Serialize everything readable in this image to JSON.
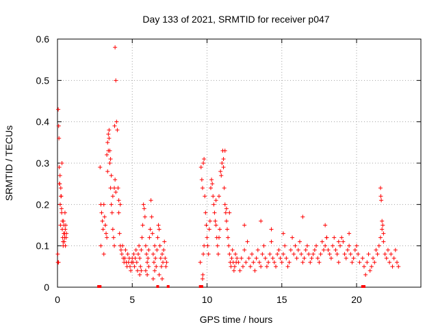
{
  "chart_data": {
    "type": "scatter",
    "title": "Day 133 of 2021, SRMTID for receiver p047",
    "xlabel": "GPS time / hours",
    "ylabel": "SRMTID / TECUs",
    "xlim": [
      0,
      24.3
    ],
    "ylim": [
      0,
      0.6
    ],
    "x_ticks": [
      0,
      5,
      10,
      15,
      20
    ],
    "y_ticks": [
      0,
      0.1,
      0.2,
      0.3,
      0.4,
      0.5,
      0.6
    ],
    "x_tick_labels": [
      "0",
      "5",
      "10",
      "15",
      "20"
    ],
    "y_tick_labels": [
      "0",
      "0.1",
      "0.2",
      "0.3",
      "0.4",
      "0.5",
      "0.6"
    ],
    "grid": true,
    "marker": "+",
    "color": "#ff0000",
    "series": [
      {
        "name": "SRMTID",
        "x": [
          0.02,
          0.05,
          0.08,
          0.1,
          0.12,
          0.15,
          0.18,
          0.2,
          0.22,
          0.25,
          0.28,
          0.3,
          0.32,
          0.35,
          0.38,
          0.4,
          0.42,
          0.45,
          0.48,
          0.5,
          0.52,
          0.55,
          0.58,
          0.6,
          0.03,
          0.07,
          0.13,
          0.17,
          0.23,
          0.27,
          0.33,
          0.37,
          0.43,
          0.47,
          0.53,
          2.85,
          2.9,
          2.95,
          3.0,
          3.05,
          3.1,
          3.15,
          3.2,
          3.25,
          3.3,
          3.35,
          3.4,
          3.45,
          3.5,
          3.55,
          3.6,
          3.65,
          3.7,
          3.75,
          3.8,
          3.85,
          3.9,
          3.95,
          4.0,
          4.05,
          4.1,
          4.15,
          4.2,
          4.25,
          4.3,
          4.35,
          4.4,
          4.45,
          4.5,
          4.55,
          4.6,
          4.65,
          4.7,
          4.75,
          4.8,
          4.85,
          4.9,
          4.95,
          5.0,
          3.4,
          3.45,
          3.5,
          3.55,
          3.3,
          3.35,
          3.6,
          3.8,
          3.82,
          3.85,
          3.9,
          3.7,
          4.1,
          4.2,
          2.9,
          3.1,
          3.2,
          5.05,
          5.1,
          5.15,
          5.2,
          5.25,
          5.3,
          5.35,
          5.4,
          5.45,
          5.5,
          5.55,
          5.6,
          5.65,
          5.7,
          5.75,
          5.8,
          5.85,
          5.9,
          5.95,
          6.0,
          6.05,
          6.1,
          6.15,
          6.2,
          6.25,
          6.3,
          6.35,
          6.4,
          6.45,
          6.5,
          6.55,
          6.6,
          6.65,
          6.7,
          6.75,
          6.8,
          6.85,
          6.9,
          6.95,
          7.0,
          7.05,
          7.1,
          7.15,
          7.2,
          7.25,
          7.3,
          5.5,
          5.6,
          5.9,
          6.0,
          6.1,
          6.4,
          6.5,
          6.8,
          7.0,
          9.55,
          9.6,
          9.65,
          9.7,
          9.75,
          9.8,
          9.85,
          9.9,
          9.95,
          10.0,
          10.05,
          10.1,
          10.15,
          10.2,
          10.25,
          10.3,
          10.35,
          10.4,
          10.45,
          10.5,
          10.55,
          10.6,
          10.65,
          10.7,
          10.75,
          10.8,
          10.85,
          10.9,
          10.95,
          11.0,
          11.05,
          11.1,
          11.15,
          11.2,
          11.25,
          11.3,
          11.35,
          11.4,
          11.45,
          11.5,
          11.55,
          11.6,
          11.65,
          11.7,
          11.75,
          11.8,
          11.85,
          11.9,
          11.95,
          12.0,
          9.7,
          9.72,
          9.75,
          9.8,
          10.6,
          10.8,
          11.1,
          11.2,
          11.3,
          11.5,
          12.1,
          12.2,
          12.3,
          12.4,
          12.5,
          12.6,
          12.7,
          12.8,
          12.9,
          13.0,
          13.1,
          13.2,
          13.3,
          13.4,
          13.5,
          13.6,
          13.7,
          13.8,
          13.9,
          14.0,
          14.1,
          14.2,
          14.3,
          14.4,
          14.5,
          14.6,
          14.7,
          14.8,
          14.9,
          15.0,
          15.1,
          15.2,
          15.3,
          15.4,
          15.5,
          15.6,
          15.7,
          15.8,
          15.9,
          16.0,
          16.1,
          16.2,
          16.3,
          16.4,
          16.5,
          16.6,
          16.7,
          16.8,
          16.9,
          17.0,
          17.1,
          17.2,
          17.3,
          17.4,
          17.5,
          17.6,
          17.7,
          17.8,
          17.9,
          18.0,
          18.1,
          18.2,
          18.3,
          18.4,
          18.5,
          18.6,
          18.7,
          18.8,
          18.9,
          19.0,
          19.1,
          19.2,
          19.3,
          19.4,
          19.5,
          19.6,
          19.7,
          19.8,
          19.9,
          20.0,
          20.1,
          20.2,
          12.5,
          13.6,
          14.3,
          15.1,
          16.4,
          17.9,
          18.0,
          18.8,
          19.5,
          20.4,
          20.5,
          20.6,
          20.7,
          20.8,
          20.9,
          21.0,
          21.1,
          21.2,
          21.3,
          21.4,
          21.5,
          21.6,
          21.7,
          21.8,
          21.9,
          22.0,
          22.1,
          22.2,
          22.3,
          22.4,
          22.5,
          22.6,
          22.7,
          22.8,
          21.6,
          21.62,
          21.65,
          21.7,
          21.75,
          21.8
        ],
        "y": [
          0.08,
          0.43,
          0.39,
          0.36,
          0.29,
          0.25,
          0.2,
          0.15,
          0.24,
          0.22,
          0.18,
          0.3,
          0.14,
          0.12,
          0.1,
          0.16,
          0.13,
          0.11,
          0.12,
          0.18,
          0.14,
          0.15,
          0.12,
          0.13,
          0.06,
          0.06,
          0.25,
          0.27,
          0.22,
          0.19,
          0.16,
          0.11,
          0.15,
          0.13,
          0.1,
          0.29,
          0.2,
          0.18,
          0.16,
          0.14,
          0.2,
          0.17,
          0.15,
          0.13,
          0.12,
          0.35,
          0.33,
          0.38,
          0.3,
          0.24,
          0.2,
          0.18,
          0.14,
          0.12,
          0.1,
          0.58,
          0.5,
          0.4,
          0.38,
          0.24,
          0.18,
          0.13,
          0.1,
          0.09,
          0.08,
          0.1,
          0.07,
          0.06,
          0.07,
          0.09,
          0.06,
          0.05,
          0.08,
          0.06,
          0.07,
          0.05,
          0.04,
          0.06,
          0.07,
          0.37,
          0.36,
          0.33,
          0.31,
          0.32,
          0.28,
          0.27,
          0.24,
          0.39,
          0.26,
          0.23,
          0.22,
          0.21,
          0.2,
          0.1,
          0.08,
          0.15,
          0.06,
          0.08,
          0.05,
          0.07,
          0.09,
          0.06,
          0.04,
          0.08,
          0.1,
          0.07,
          0.05,
          0.09,
          0.12,
          0.15,
          0.2,
          0.19,
          0.17,
          0.1,
          0.08,
          0.06,
          0.07,
          0.09,
          0.12,
          0.14,
          0.21,
          0.17,
          0.13,
          0.08,
          0.06,
          0.1,
          0.07,
          0.05,
          0.09,
          0.12,
          0.15,
          0.14,
          0.1,
          0.07,
          0.05,
          0.08,
          0.06,
          0.09,
          0.11,
          0.07,
          0.05,
          0.06,
          0.03,
          0.04,
          0.04,
          0.03,
          0.05,
          0.02,
          0.04,
          0.03,
          0.02,
          0.06,
          0.29,
          0.26,
          0.24,
          0.3,
          0.31,
          0.22,
          0.18,
          0.15,
          0.12,
          0.1,
          0.08,
          0.14,
          0.16,
          0.24,
          0.26,
          0.25,
          0.22,
          0.2,
          0.18,
          0.16,
          0.15,
          0.12,
          0.1,
          0.08,
          0.12,
          0.14,
          0.28,
          0.27,
          0.3,
          0.33,
          0.31,
          0.24,
          0.2,
          0.18,
          0.16,
          0.14,
          0.12,
          0.1,
          0.08,
          0.06,
          0.05,
          0.07,
          0.09,
          0.06,
          0.04,
          0.05,
          0.08,
          0.06,
          0.07,
          0.02,
          0.03,
          0.08,
          0.1,
          0.21,
          0.22,
          0.29,
          0.33,
          0.19,
          0.18,
          0.06,
          0.04,
          0.07,
          0.05,
          0.09,
          0.06,
          0.11,
          0.07,
          0.05,
          0.08,
          0.06,
          0.04,
          0.07,
          0.09,
          0.06,
          0.05,
          0.08,
          0.1,
          0.07,
          0.05,
          0.06,
          0.08,
          0.11,
          0.07,
          0.06,
          0.05,
          0.08,
          0.09,
          0.07,
          0.06,
          0.08,
          0.1,
          0.07,
          0.05,
          0.06,
          0.09,
          0.12,
          0.08,
          0.1,
          0.07,
          0.09,
          0.11,
          0.08,
          0.06,
          0.07,
          0.09,
          0.1,
          0.08,
          0.06,
          0.07,
          0.08,
          0.09,
          0.1,
          0.07,
          0.06,
          0.08,
          0.11,
          0.09,
          0.1,
          0.12,
          0.09,
          0.08,
          0.07,
          0.1,
          0.12,
          0.09,
          0.08,
          0.06,
          0.1,
          0.12,
          0.11,
          0.08,
          0.07,
          0.09,
          0.1,
          0.08,
          0.06,
          0.07,
          0.09,
          0.1,
          0.08,
          0.06,
          0.15,
          0.16,
          0.14,
          0.13,
          0.17,
          0.15,
          0.12,
          0.11,
          0.13,
          0.07,
          0.05,
          0.03,
          0.06,
          0.08,
          0.04,
          0.05,
          0.07,
          0.06,
          0.09,
          0.08,
          0.1,
          0.12,
          0.14,
          0.11,
          0.08,
          0.07,
          0.09,
          0.06,
          0.08,
          0.05,
          0.07,
          0.09,
          0.06,
          0.05,
          0.24,
          0.22,
          0.21,
          0.16,
          0.15,
          0.13
        ]
      }
    ],
    "annotations": {
      "gap_markers_x": [
        2.75,
        2.85,
        6.7,
        7.4,
        9.55,
        9.65,
        20.4,
        20.5
      ]
    }
  }
}
